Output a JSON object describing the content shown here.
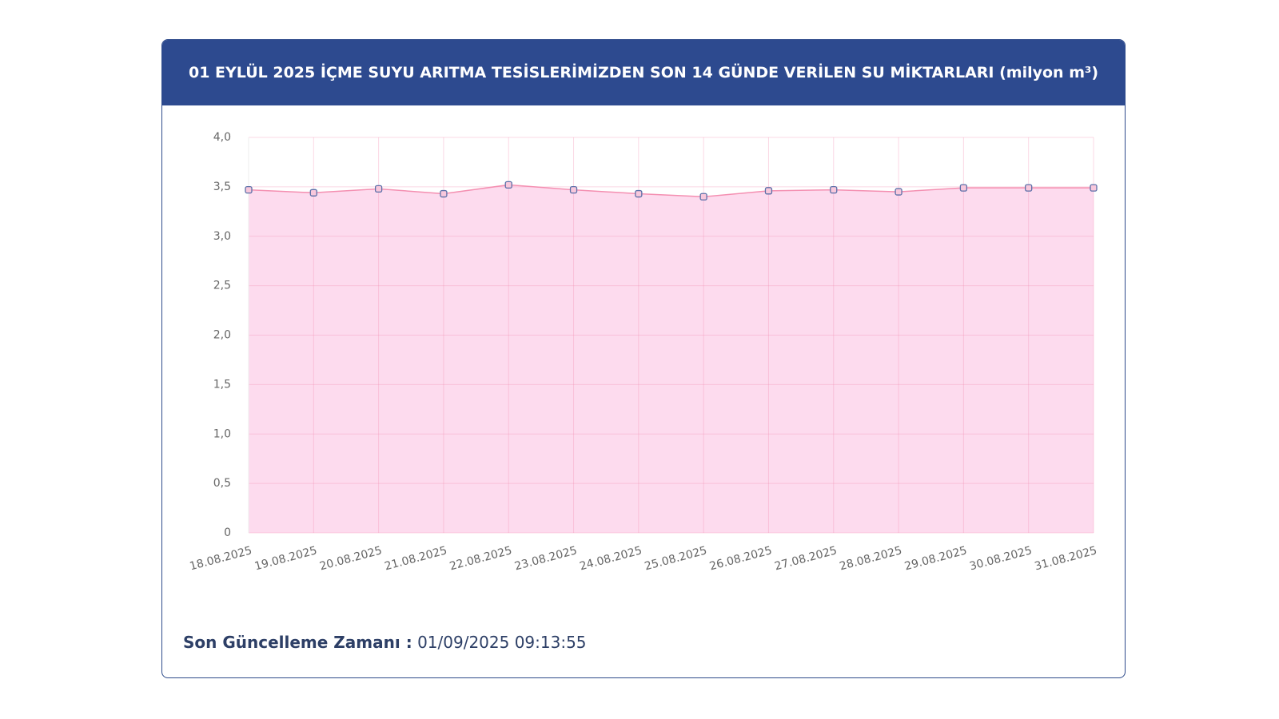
{
  "chart_data": {
    "type": "area",
    "title": "01 EYLÜL 2025 İÇME SUYU ARITMA TESİSLERİMİZDEN SON 14 GÜNDE VERİLEN SU MİKTARLARI (milyon m³)",
    "categories": [
      "18.08.2025",
      "19.08.2025",
      "20.08.2025",
      "21.08.2025",
      "22.08.2025",
      "23.08.2025",
      "24.08.2025",
      "25.08.2025",
      "26.08.2025",
      "27.08.2025",
      "28.08.2025",
      "29.08.2025",
      "30.08.2025",
      "31.08.2025"
    ],
    "series": [
      {
        "color": "#f48fb1",
        "fill": "#fddbee",
        "values": [
          3.47,
          3.44,
          3.48,
          3.43,
          3.52,
          3.47,
          3.43,
          3.4,
          3.46,
          3.47,
          3.45,
          3.49,
          3.49,
          3.49
        ]
      }
    ],
    "ylim": [
      0,
      4
    ],
    "yticks": [
      0,
      {
        "value": 0.5,
        "label": "0,5"
      },
      {
        "value": 1,
        "label": "1,0"
      },
      {
        "value": 1.5,
        "label": "1,5"
      },
      {
        "value": 2,
        "label": "2,0"
      },
      {
        "value": 2.5,
        "label": "2,5"
      },
      {
        "value": 3,
        "label": "3,0"
      },
      {
        "value": 3.5,
        "label": "3,5"
      },
      {
        "value": 4,
        "label": "4,0"
      }
    ],
    "grid": true
  },
  "footer": {
    "label": "Son Güncelleme Zamanı :",
    "value": "01/09/2025 09:13:55"
  }
}
